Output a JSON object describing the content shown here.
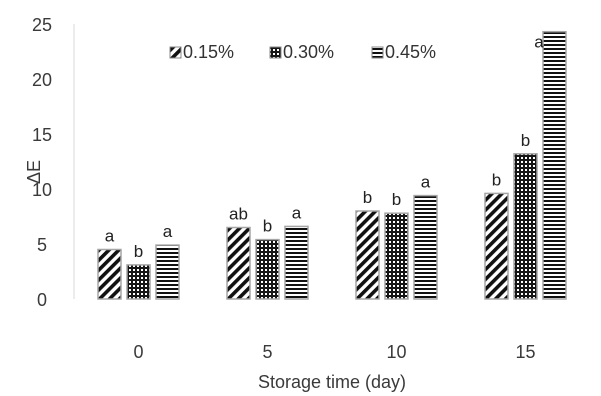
{
  "chart_data": {
    "type": "bar",
    "xlabel": "Storage time (day)",
    "ylabel": "ΔE",
    "ylim": [
      0,
      25
    ],
    "yticks": [
      "0",
      "5",
      "10",
      "15",
      "20",
      "25"
    ],
    "categories": [
      "0",
      "5",
      "10",
      "15"
    ],
    "grid": false,
    "legend_position": "top",
    "series": [
      {
        "name": "0.15%",
        "pattern": "diagonal",
        "values": [
          4.5,
          6.5,
          8.0,
          9.6
        ],
        "labels": [
          "a",
          "ab",
          "b",
          "b"
        ]
      },
      {
        "name": "0.30%",
        "pattern": "dots",
        "values": [
          3.1,
          5.4,
          7.8,
          13.2
        ],
        "labels": [
          "b",
          "b",
          "b",
          "b"
        ]
      },
      {
        "name": "0.45%",
        "pattern": "horizontal",
        "values": [
          4.9,
          6.6,
          9.4,
          24.3
        ],
        "labels": [
          "a",
          "a",
          "a",
          "a"
        ]
      }
    ]
  }
}
